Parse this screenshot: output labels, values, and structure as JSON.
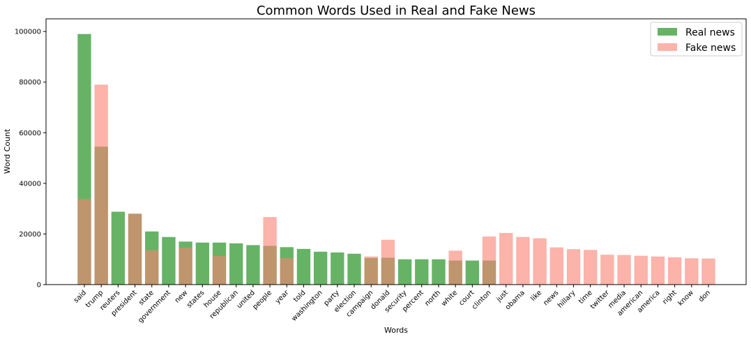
{
  "chart_data": {
    "type": "bar",
    "title": "Common Words Used in Real and Fake News",
    "xlabel": "Words",
    "ylabel": "Word Count",
    "ylim": [
      0,
      105000
    ],
    "yticks": [
      0,
      20000,
      40000,
      60000,
      80000,
      100000
    ],
    "grid": false,
    "legend_position": "top-right",
    "categories": [
      "said",
      "trump",
      "reuters",
      "president",
      "state",
      "government",
      "new",
      "states",
      "house",
      "republican",
      "united",
      "people",
      "year",
      "told",
      "washington",
      "party",
      "election",
      "campaign",
      "donald",
      "security",
      "percent",
      "north",
      "white",
      "court",
      "clinton",
      "just",
      "obama",
      "like",
      "news",
      "hillary",
      "time",
      "twitter",
      "media",
      "american",
      "america",
      "right",
      "know",
      "don"
    ],
    "series": [
      {
        "name": "Real news",
        "color": "#008000",
        "values": [
          99000,
          54500,
          28800,
          28000,
          21000,
          18800,
          17000,
          16600,
          16600,
          16300,
          15600,
          15300,
          14800,
          14100,
          13000,
          12700,
          12200,
          10500,
          10600,
          10000,
          10000,
          10000,
          9500,
          9500,
          9500,
          0,
          0,
          0,
          0,
          0,
          0,
          0,
          0,
          0,
          0,
          0,
          0,
          0
        ]
      },
      {
        "name": "Fake news",
        "color": "#fa8072",
        "values": [
          33800,
          79000,
          0,
          28000,
          13500,
          0,
          14600,
          0,
          11300,
          0,
          0,
          26700,
          10400,
          0,
          0,
          0,
          0,
          11100,
          17700,
          0,
          0,
          0,
          13400,
          0,
          19000,
          20400,
          18800,
          18300,
          14700,
          14000,
          13700,
          11800,
          11700,
          11400,
          11100,
          10800,
          10400,
          10300
        ]
      }
    ]
  }
}
